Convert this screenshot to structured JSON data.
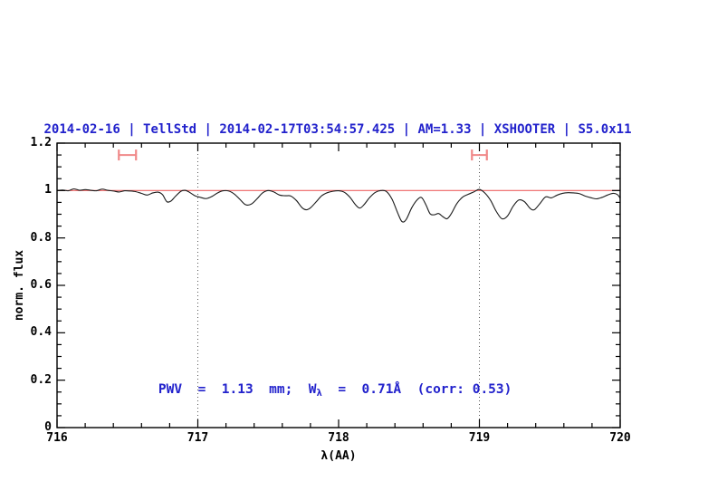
{
  "figure": {
    "title": "2014-02-16 | TellStd | 2014-02-17T03:54:57.425 | AM=1.33 | XSHOOTER | S5.0x11",
    "xlabel": "λ(AA)",
    "ylabel": "norm. flux",
    "annotation": {
      "prefix": "PWV  =  1.13  mm;  W",
      "subscript": "λ",
      "suffix": "  =  0.71Å  (corr: 0.53)"
    }
  },
  "colors": {
    "title_blue": "#2222cc",
    "annotation_blue": "#2222cc",
    "reference_red": "#ee6565",
    "marker_red": "#f08888",
    "spectrum": "#1b1b1b",
    "dotted_line": "#555555",
    "axis": "#000000"
  },
  "chart_data": {
    "type": "line",
    "title": "2014-02-16 | TellStd | 2014-02-17T03:54:57.425 | AM=1.33 | XSHOOTER | S5.0x11",
    "xlabel": "λ(AA)",
    "ylabel": "norm. flux",
    "xlim": [
      716,
      720
    ],
    "ylim": [
      0,
      1.2
    ],
    "grid": "off",
    "legend": "none",
    "x_major_ticks": [
      716,
      717,
      718,
      719,
      720
    ],
    "x_tick_labels": [
      "716",
      "717",
      "718",
      "719",
      "720"
    ],
    "x_minor_step": 0.2,
    "y_major_ticks": [
      0,
      0.2,
      0.4,
      0.6,
      0.8,
      1,
      1.2
    ],
    "y_tick_labels": [
      "0",
      "0.2",
      "0.4",
      "0.6",
      "0.8",
      "1",
      "1.2"
    ],
    "y_minor_step": 0.05,
    "vlines_dotted_x": [
      717,
      719
    ],
    "reference_line_y": 1.0,
    "range_markers": [
      {
        "x_center": 716.5,
        "half_width": 0.061,
        "y": 1.15
      },
      {
        "x_center": 719.0,
        "half_width": 0.053,
        "y": 1.15
      }
    ],
    "series": [
      {
        "name": "telluric-standard-spectrum",
        "x": [
          716.0,
          716.04,
          716.08,
          716.12,
          716.16,
          716.2,
          716.24,
          716.28,
          716.32,
          716.36,
          716.4,
          716.44,
          716.48,
          716.52,
          716.56,
          716.6,
          716.64,
          716.68,
          716.72,
          716.75,
          716.78,
          716.81,
          716.84,
          716.88,
          716.91,
          716.94,
          716.98,
          717.02,
          717.06,
          717.1,
          717.14,
          717.18,
          717.22,
          717.26,
          717.3,
          717.34,
          717.38,
          717.42,
          717.46,
          717.5,
          717.54,
          717.58,
          717.62,
          717.66,
          717.7,
          717.74,
          717.77,
          717.8,
          717.84,
          717.88,
          717.92,
          717.96,
          718.0,
          718.04,
          718.08,
          718.12,
          718.15,
          718.18,
          718.22,
          718.26,
          718.3,
          718.34,
          718.38,
          718.42,
          718.45,
          718.48,
          718.52,
          718.56,
          718.59,
          718.62,
          718.65,
          718.68,
          718.71,
          718.74,
          718.77,
          718.8,
          718.84,
          718.88,
          718.92,
          718.96,
          719.0,
          719.04,
          719.08,
          719.12,
          719.16,
          719.2,
          719.24,
          719.28,
          719.32,
          719.36,
          719.39,
          719.43,
          719.47,
          719.51,
          719.55,
          719.59,
          719.63,
          719.67,
          719.71,
          719.75,
          719.79,
          719.83,
          719.87,
          719.91,
          719.95,
          719.98,
          720.0
        ],
        "flux": [
          1.0,
          1.002,
          0.999,
          1.007,
          1.001,
          1.004,
          1.001,
          0.999,
          1.006,
          1.001,
          0.998,
          0.994,
          0.999,
          0.998,
          0.995,
          0.988,
          0.981,
          0.99,
          0.993,
          0.982,
          0.953,
          0.956,
          0.975,
          0.997,
          1.001,
          0.993,
          0.978,
          0.971,
          0.966,
          0.975,
          0.99,
          0.999,
          0.998,
          0.985,
          0.962,
          0.94,
          0.943,
          0.965,
          0.99,
          1.0,
          0.994,
          0.981,
          0.978,
          0.977,
          0.958,
          0.928,
          0.919,
          0.927,
          0.952,
          0.978,
          0.991,
          0.997,
          0.999,
          0.993,
          0.972,
          0.94,
          0.926,
          0.94,
          0.97,
          0.992,
          1.0,
          0.996,
          0.963,
          0.905,
          0.869,
          0.878,
          0.928,
          0.962,
          0.97,
          0.94,
          0.902,
          0.898,
          0.903,
          0.89,
          0.881,
          0.902,
          0.945,
          0.972,
          0.984,
          0.994,
          1.005,
          0.989,
          0.958,
          0.912,
          0.881,
          0.893,
          0.934,
          0.96,
          0.953,
          0.925,
          0.919,
          0.945,
          0.973,
          0.969,
          0.98,
          0.988,
          0.991,
          0.99,
          0.987,
          0.977,
          0.97,
          0.965,
          0.971,
          0.981,
          0.988,
          0.983,
          0.968
        ]
      }
    ]
  }
}
